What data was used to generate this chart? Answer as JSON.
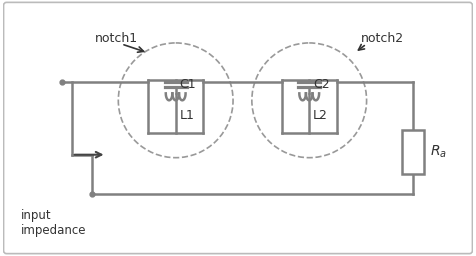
{
  "circuit_color": "#808080",
  "line_width": 1.8,
  "notch1_label": "notch1",
  "notch2_label": "notch2",
  "C1_label": "C1",
  "C2_label": "C2",
  "L1_label": "L1",
  "L2_label": "L2",
  "Ra_label": "$R_a$",
  "input_label": "input\nimpedance",
  "font_size": 9
}
